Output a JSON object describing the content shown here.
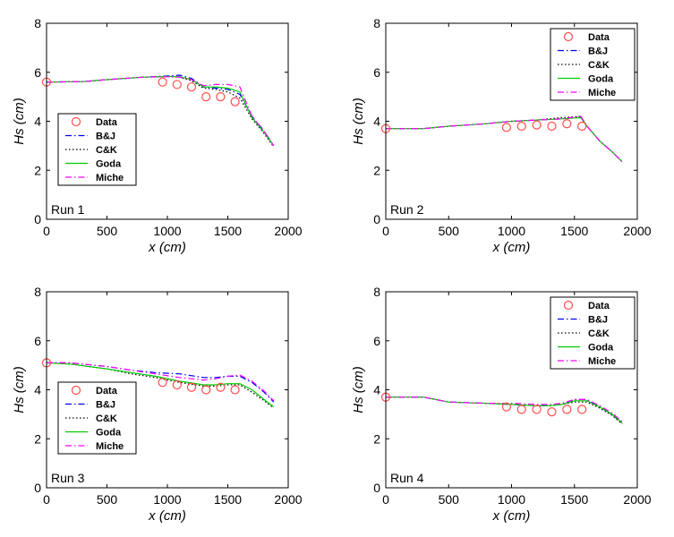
{
  "chart_data": [
    {
      "type": "line",
      "run_label": "Run 1",
      "xlabel": "x (cm)",
      "ylabel": "Hs (cm)",
      "xlim": [
        0,
        2000
      ],
      "ylim": [
        0,
        8
      ],
      "xticks": [
        0,
        500,
        1000,
        1500,
        2000
      ],
      "yticks": [
        0,
        2,
        4,
        6,
        8
      ],
      "legend": "lower-left",
      "grid": false,
      "data": {
        "name": "Data",
        "x": [
          0,
          960,
          1080,
          1200,
          1320,
          1440,
          1560
        ],
        "y": [
          5.6,
          5.6,
          5.5,
          5.4,
          5.0,
          5.0,
          4.8
        ]
      },
      "series": [
        {
          "name": "B&J",
          "x": [
            0,
            300,
            500,
            800,
            1000,
            1100,
            1200,
            1300,
            1400,
            1500,
            1600,
            1700,
            1800,
            1880
          ],
          "y": [
            5.6,
            5.62,
            5.7,
            5.8,
            5.85,
            5.88,
            5.75,
            5.4,
            5.35,
            5.3,
            5.1,
            4.2,
            3.6,
            3.0
          ]
        },
        {
          "name": "C&K",
          "x": [
            0,
            300,
            500,
            800,
            1000,
            1100,
            1200,
            1300,
            1400,
            1500,
            1600,
            1700,
            1800,
            1880
          ],
          "y": [
            5.6,
            5.62,
            5.7,
            5.8,
            5.82,
            5.8,
            5.65,
            5.35,
            5.3,
            5.2,
            4.95,
            4.1,
            3.5,
            2.95
          ]
        },
        {
          "name": "Goda",
          "x": [
            0,
            300,
            500,
            800,
            1000,
            1100,
            1200,
            1300,
            1400,
            1500,
            1600,
            1700,
            1800,
            1880
          ],
          "y": [
            5.6,
            5.62,
            5.7,
            5.8,
            5.83,
            5.82,
            5.7,
            5.4,
            5.4,
            5.35,
            5.2,
            4.15,
            3.55,
            3.0
          ]
        },
        {
          "name": "Miche",
          "x": [
            0,
            300,
            500,
            800,
            1000,
            1100,
            1200,
            1300,
            1400,
            1500,
            1600,
            1700,
            1800,
            1880
          ],
          "y": [
            5.6,
            5.62,
            5.7,
            5.8,
            5.82,
            5.8,
            5.7,
            5.45,
            5.5,
            5.5,
            5.4,
            4.2,
            3.6,
            3.0
          ]
        }
      ]
    },
    {
      "type": "line",
      "run_label": "Run 2",
      "xlabel": "x (cm)",
      "ylabel": "Hs (cm)",
      "xlim": [
        0,
        2000
      ],
      "ylim": [
        0,
        8
      ],
      "xticks": [
        0,
        500,
        1000,
        1500,
        2000
      ],
      "yticks": [
        0,
        2,
        4,
        6,
        8
      ],
      "legend": "top-right",
      "grid": false,
      "data": {
        "name": "Data",
        "x": [
          0,
          960,
          1080,
          1200,
          1320,
          1440,
          1560
        ],
        "y": [
          3.7,
          3.75,
          3.8,
          3.85,
          3.8,
          3.9,
          3.8
        ]
      },
      "series": [
        {
          "name": "B&J",
          "x": [
            0,
            300,
            500,
            800,
            1000,
            1200,
            1400,
            1550,
            1600,
            1700,
            1800,
            1880
          ],
          "y": [
            3.7,
            3.7,
            3.8,
            3.9,
            4.0,
            4.05,
            4.1,
            4.2,
            3.8,
            3.2,
            2.75,
            2.35
          ]
        },
        {
          "name": "C&K",
          "x": [
            0,
            300,
            500,
            800,
            1000,
            1200,
            1400,
            1550,
            1600,
            1700,
            1800,
            1880
          ],
          "y": [
            3.7,
            3.7,
            3.8,
            3.9,
            4.0,
            4.05,
            4.15,
            4.2,
            3.8,
            3.2,
            2.75,
            2.35
          ]
        },
        {
          "name": "Goda",
          "x": [
            0,
            300,
            500,
            800,
            1000,
            1200,
            1400,
            1550,
            1600,
            1700,
            1800,
            1880
          ],
          "y": [
            3.7,
            3.7,
            3.8,
            3.9,
            4.0,
            4.05,
            4.1,
            4.15,
            3.8,
            3.2,
            2.75,
            2.35
          ]
        },
        {
          "name": "Miche",
          "x": [
            0,
            300,
            500,
            800,
            1000,
            1200,
            1400,
            1550,
            1600,
            1700,
            1800,
            1880
          ],
          "y": [
            3.7,
            3.7,
            3.8,
            3.9,
            4.0,
            4.05,
            4.1,
            4.2,
            3.8,
            3.2,
            2.75,
            2.35
          ]
        }
      ]
    },
    {
      "type": "line",
      "run_label": "Run 3",
      "xlabel": "x (cm)",
      "ylabel": "Hs (cm)",
      "xlim": [
        0,
        2000
      ],
      "ylim": [
        0,
        8
      ],
      "xticks": [
        0,
        500,
        1000,
        1500,
        2000
      ],
      "yticks": [
        0,
        2,
        4,
        6,
        8
      ],
      "legend": "lower-left",
      "grid": false,
      "data": {
        "name": "Data",
        "x": [
          0,
          960,
          1080,
          1200,
          1320,
          1440,
          1560
        ],
        "y": [
          5.1,
          4.3,
          4.2,
          4.1,
          4.0,
          4.1,
          4.0
        ]
      },
      "series": [
        {
          "name": "B&J",
          "x": [
            0,
            200,
            500,
            700,
            900,
            1100,
            1300,
            1400,
            1500,
            1600,
            1700,
            1800,
            1880
          ],
          "y": [
            5.1,
            5.1,
            4.95,
            4.8,
            4.7,
            4.65,
            4.5,
            4.5,
            4.55,
            4.55,
            4.3,
            3.9,
            3.5
          ]
        },
        {
          "name": "C&K",
          "x": [
            0,
            200,
            500,
            700,
            900,
            1100,
            1300,
            1400,
            1500,
            1600,
            1700,
            1800,
            1880
          ],
          "y": [
            5.1,
            5.05,
            4.85,
            4.65,
            4.5,
            4.3,
            4.15,
            4.15,
            4.2,
            4.2,
            3.9,
            3.55,
            3.25
          ]
        },
        {
          "name": "Goda",
          "x": [
            0,
            200,
            500,
            700,
            900,
            1100,
            1300,
            1400,
            1500,
            1600,
            1700,
            1800,
            1880
          ],
          "y": [
            5.1,
            5.05,
            4.85,
            4.7,
            4.55,
            4.35,
            4.2,
            4.2,
            4.25,
            4.25,
            4.0,
            3.6,
            3.3
          ]
        },
        {
          "name": "Miche",
          "x": [
            0,
            200,
            500,
            700,
            900,
            1100,
            1300,
            1400,
            1500,
            1600,
            1700,
            1800,
            1880
          ],
          "y": [
            5.1,
            5.1,
            4.95,
            4.8,
            4.65,
            4.5,
            4.4,
            4.45,
            4.55,
            4.6,
            4.35,
            3.95,
            3.55
          ]
        }
      ]
    },
    {
      "type": "line",
      "run_label": "Run 4",
      "xlabel": "x (cm)",
      "ylabel": "Hs (cm)",
      "xlim": [
        0,
        2000
      ],
      "ylim": [
        0,
        8
      ],
      "xticks": [
        0,
        500,
        1000,
        1500,
        2000
      ],
      "yticks": [
        0,
        2,
        4,
        6,
        8
      ],
      "legend": "top-right",
      "grid": false,
      "data": {
        "name": "Data",
        "x": [
          0,
          960,
          1080,
          1200,
          1320,
          1440,
          1560
        ],
        "y": [
          3.7,
          3.3,
          3.2,
          3.2,
          3.1,
          3.2,
          3.2
        ]
      },
      "series": [
        {
          "name": "B&J",
          "x": [
            0,
            300,
            500,
            800,
            1000,
            1200,
            1300,
            1400,
            1500,
            1600,
            1700,
            1800,
            1880
          ],
          "y": [
            3.7,
            3.7,
            3.5,
            3.45,
            3.4,
            3.35,
            3.35,
            3.4,
            3.6,
            3.6,
            3.3,
            3.0,
            2.6
          ]
        },
        {
          "name": "C&K",
          "x": [
            0,
            300,
            500,
            800,
            1000,
            1200,
            1300,
            1400,
            1500,
            1600,
            1700,
            1800,
            1880
          ],
          "y": [
            3.7,
            3.7,
            3.5,
            3.45,
            3.4,
            3.35,
            3.35,
            3.4,
            3.5,
            3.5,
            3.25,
            2.95,
            2.6
          ]
        },
        {
          "name": "Goda",
          "x": [
            0,
            300,
            500,
            800,
            1000,
            1200,
            1300,
            1400,
            1500,
            1600,
            1700,
            1800,
            1880
          ],
          "y": [
            3.7,
            3.7,
            3.5,
            3.45,
            3.4,
            3.35,
            3.35,
            3.4,
            3.55,
            3.55,
            3.3,
            3.0,
            2.65
          ]
        },
        {
          "name": "Miche",
          "x": [
            0,
            300,
            500,
            800,
            1000,
            1200,
            1300,
            1400,
            1500,
            1600,
            1700,
            1800,
            1880
          ],
          "y": [
            3.7,
            3.7,
            3.5,
            3.45,
            3.45,
            3.4,
            3.4,
            3.45,
            3.6,
            3.6,
            3.35,
            3.05,
            2.7
          ]
        }
      ]
    }
  ],
  "styles": {
    "Data": {
      "color": "#ff4d4d",
      "marker": "circle"
    },
    "B&J": {
      "color": "#0000ff",
      "dash": "dashdot"
    },
    "C&K": {
      "color": "#000000",
      "dash": "dotted"
    },
    "Goda": {
      "color": "#00cc00",
      "dash": "solid"
    },
    "Miche": {
      "color": "#ff00ff",
      "dash": "dashdot"
    }
  }
}
